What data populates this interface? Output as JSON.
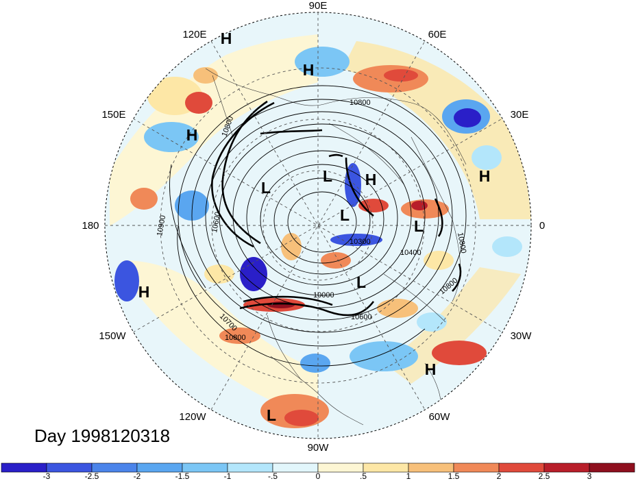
{
  "title": "Day 1998120318",
  "lon_labels": [
    "90E",
    "60E",
    "30E",
    "0",
    "30W",
    "60W",
    "90W",
    "120W",
    "150W",
    "180",
    "150E",
    "120E"
  ],
  "pressure_centers": [
    {
      "type": "H"
    },
    {
      "type": "H"
    },
    {
      "type": "H"
    },
    {
      "type": "H"
    },
    {
      "type": "H"
    },
    {
      "type": "H"
    },
    {
      "type": "H"
    },
    {
      "type": "L"
    },
    {
      "type": "L"
    },
    {
      "type": "L"
    },
    {
      "type": "L"
    },
    {
      "type": "L"
    },
    {
      "type": "L"
    }
  ],
  "contour_labels": [
    "10800",
    "10900",
    "10600",
    "10700",
    "10800",
    "10300",
    "10400",
    "10800",
    "10800",
    "10000",
    "10600",
    "10800"
  ],
  "colorbar": {
    "ticks": [
      "-3",
      "-2.5",
      "-2",
      "-1.5",
      "-1",
      "-.5",
      "0",
      ".5",
      "1",
      "1.5",
      "2",
      "2.5",
      "3"
    ],
    "colors": [
      "#2a1fc8",
      "#3b55e0",
      "#4b84ea",
      "#5aa6f0",
      "#7bc6f5",
      "#b3e6fb",
      "#e2f6fb",
      "#fdf6d4",
      "#fde7a6",
      "#f7c07a",
      "#f08958",
      "#e04a3b",
      "#b81e2a",
      "#8e0f1e"
    ]
  }
}
